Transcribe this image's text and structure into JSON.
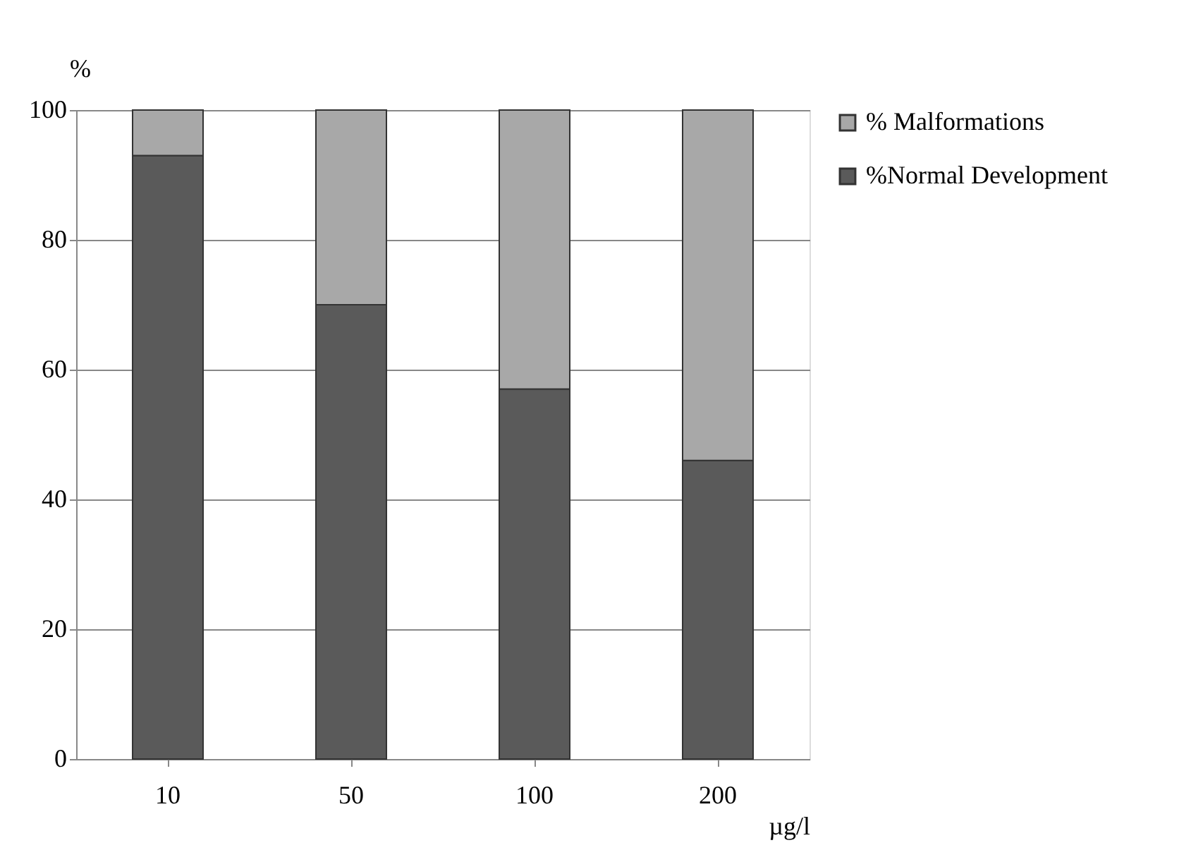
{
  "chart_data": {
    "type": "bar",
    "stacked": true,
    "ylabel": "%",
    "xlabel": "µg/l",
    "categories": [
      "10",
      "50",
      "100",
      "200"
    ],
    "series": [
      {
        "name": "%Normal Development",
        "color": "#5a5a5a",
        "values": [
          93,
          70,
          57,
          46
        ]
      },
      {
        "name": "% Malformations",
        "color": "#a8a8a8",
        "values": [
          7,
          30,
          43,
          54
        ]
      }
    ],
    "ylim": [
      0,
      100
    ],
    "yticks": [
      0,
      20,
      40,
      60,
      80,
      100
    ],
    "grid": "y",
    "legend": "top right"
  }
}
